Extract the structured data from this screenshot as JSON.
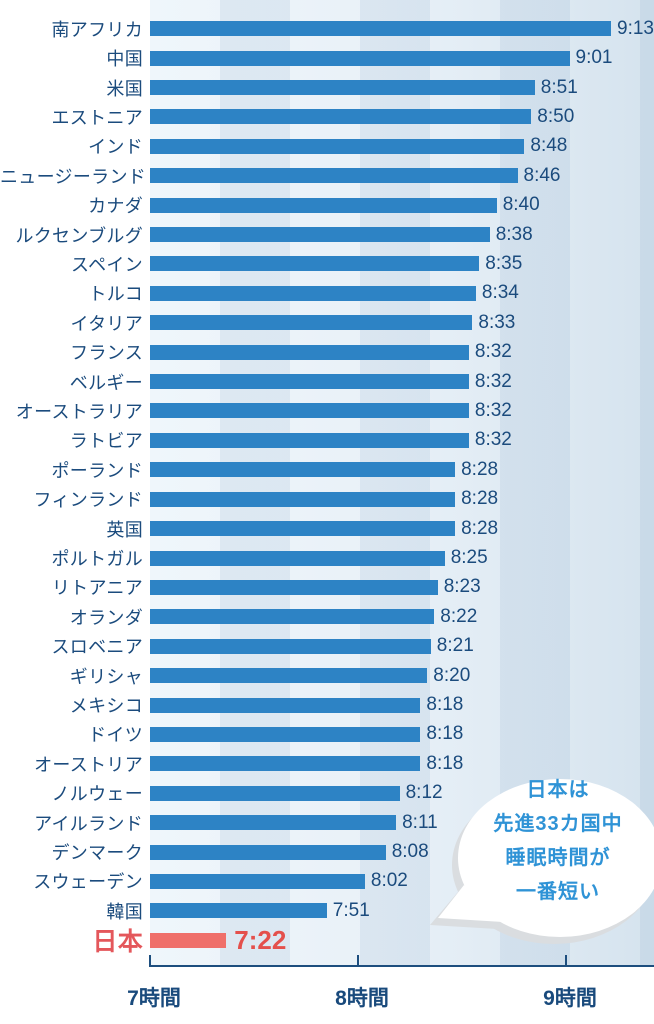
{
  "chart_data": {
    "type": "bar",
    "orientation": "horizontal",
    "title": "",
    "unit": "sleep duration (hours:minutes)",
    "bar_color": "#2d83c5",
    "highlight_color": "#ef6f6a",
    "x_axis": {
      "tick_labels": [
        "7時間",
        "8時間",
        "9時間"
      ],
      "tick_hours": [
        7,
        8,
        9
      ],
      "range_hours": [
        7,
        9.42
      ],
      "grid": "vertical 20-minute bands"
    },
    "rows": [
      {
        "label": "南アフリカ",
        "value": "9:13"
      },
      {
        "label": "中国",
        "value": "9:01"
      },
      {
        "label": "米国",
        "value": "8:51"
      },
      {
        "label": "エストニア",
        "value": "8:50"
      },
      {
        "label": "インド",
        "value": "8:48"
      },
      {
        "label": "ニュージーランド",
        "value": "8:46"
      },
      {
        "label": "カナダ",
        "value": "8:40"
      },
      {
        "label": "ルクセンブルグ",
        "value": "8:38"
      },
      {
        "label": "スペイン",
        "value": "8:35"
      },
      {
        "label": "トルコ",
        "value": "8:34"
      },
      {
        "label": "イタリア",
        "value": "8:33"
      },
      {
        "label": "フランス",
        "value": "8:32"
      },
      {
        "label": "ベルギー",
        "value": "8:32"
      },
      {
        "label": "オーストラリア",
        "value": "8:32"
      },
      {
        "label": "ラトビア",
        "value": "8:32"
      },
      {
        "label": "ポーランド",
        "value": "8:28"
      },
      {
        "label": "フィンランド",
        "value": "8:28"
      },
      {
        "label": "英国",
        "value": "8:28"
      },
      {
        "label": "ポルトガル",
        "value": "8:25"
      },
      {
        "label": "リトアニア",
        "value": "8:23"
      },
      {
        "label": "オランダ",
        "value": "8:22"
      },
      {
        "label": "スロベニア",
        "value": "8:21"
      },
      {
        "label": "ギリシャ",
        "value": "8:20"
      },
      {
        "label": "メキシコ",
        "value": "8:18"
      },
      {
        "label": "ドイツ",
        "value": "8:18"
      },
      {
        "label": "オーストリア",
        "value": "8:18"
      },
      {
        "label": "ノルウェー",
        "value": "8:12"
      },
      {
        "label": "アイルランド",
        "value": "8:11"
      },
      {
        "label": "デンマーク",
        "value": "8:08"
      },
      {
        "label": "スウェーデン",
        "value": "8:02"
      },
      {
        "label": "韓国",
        "value": "7:51"
      },
      {
        "label": "日本",
        "value": "7:22",
        "highlight": true
      }
    ],
    "annotation": {
      "lines": [
        "日本は",
        "先進33カ国中",
        "睡眠時間が",
        "一番短い"
      ],
      "text_color": "#2f93d6",
      "shape": "white speech bubble with tail pointing to Japan bar"
    }
  }
}
